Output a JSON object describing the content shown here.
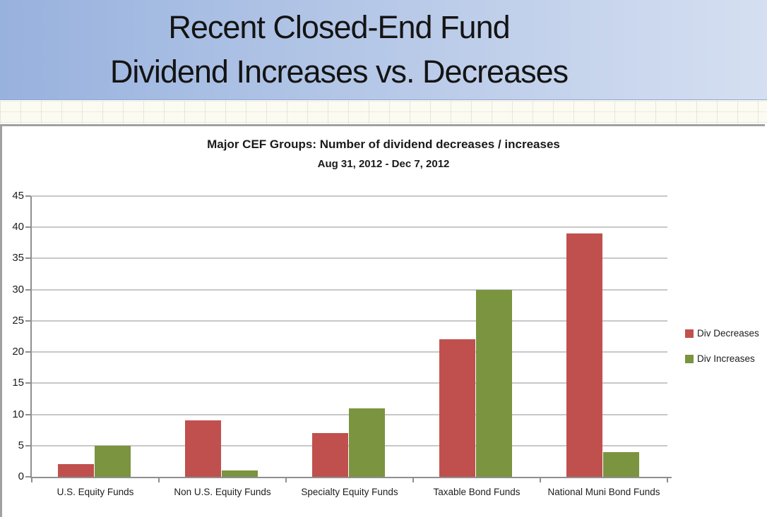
{
  "banner": {
    "title_line1": "Recent Closed-End Fund",
    "title_line2": "Dividend Increases vs. Decreases"
  },
  "chart_data": {
    "type": "bar",
    "title": "Major CEF Groups: Number of dividend decreases / increases",
    "subtitle": "Aug 31, 2012 - Dec 7, 2012",
    "categories": [
      "U.S. Equity Funds",
      "Non U.S. Equity Funds",
      "Specialty Equity Funds",
      "Taxable Bond Funds",
      "National Muni Bond Funds"
    ],
    "series": [
      {
        "name": "Div Decreases",
        "color": "#C0504D",
        "values": [
          2,
          9,
          7,
          22,
          39
        ]
      },
      {
        "name": "Div Increases",
        "color": "#7A9440",
        "values": [
          5,
          1,
          11,
          30,
          4
        ]
      }
    ],
    "xlabel": "",
    "ylabel": "",
    "ylim": [
      0,
      45
    ],
    "yticks": [
      0,
      5,
      10,
      15,
      20,
      25,
      30,
      35,
      40,
      45
    ],
    "grid": true,
    "legend_position": "right-middle"
  },
  "colors": {
    "banner_gradient_left": "#98B2DE",
    "banner_gradient_right": "#D5DFF1",
    "div_decreases": "#C0504D",
    "div_increases": "#7A9440",
    "gridline": "#C8C8C8",
    "axis": "#8F8F8F",
    "chart_text": "#1d1d1d"
  }
}
